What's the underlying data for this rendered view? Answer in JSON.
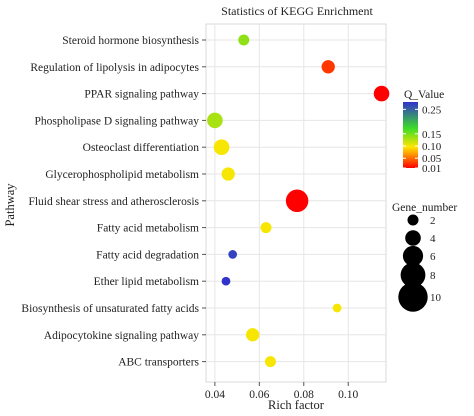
{
  "chart_data": {
    "type": "scatter",
    "title": "Statistics of KEGG Enrichment",
    "xlabel": "Rich factor",
    "ylabel": "Pathway",
    "xlim": [
      0.036,
      0.117
    ],
    "xticks": [
      0.04,
      0.06,
      0.08,
      0.1
    ],
    "xtick_labels": [
      "0.04",
      "0.06",
      "0.08",
      "0.10"
    ],
    "grid": true,
    "legend_position": "right",
    "points": [
      {
        "pathway": "Steroid hormone biosynthesis",
        "rich_factor": 0.053,
        "q_value": 0.14,
        "gene_number": 2
      },
      {
        "pathway": "Regulation of lipolysis in adipocytes",
        "rich_factor": 0.091,
        "q_value": 0.03,
        "gene_number": 3
      },
      {
        "pathway": "PPAR signaling pathway",
        "rich_factor": 0.115,
        "q_value": 0.01,
        "gene_number": 4
      },
      {
        "pathway": "Phospholipase D signaling pathway",
        "rich_factor": 0.04,
        "q_value": 0.13,
        "gene_number": 4
      },
      {
        "pathway": "Osteoclast differentiation",
        "rich_factor": 0.043,
        "q_value": 0.1,
        "gene_number": 4
      },
      {
        "pathway": "Glycerophospholipid metabolism",
        "rich_factor": 0.046,
        "q_value": 0.1,
        "gene_number": 3
      },
      {
        "pathway": "Fluid shear stress and atherosclerosis",
        "rich_factor": 0.077,
        "q_value": 0.01,
        "gene_number": 7
      },
      {
        "pathway": "Fatty acid metabolism",
        "rich_factor": 0.063,
        "q_value": 0.1,
        "gene_number": 2
      },
      {
        "pathway": "Fatty acid degradation",
        "rich_factor": 0.048,
        "q_value": 0.27,
        "gene_number": 1
      },
      {
        "pathway": "Ether lipid metabolism",
        "rich_factor": 0.045,
        "q_value": 0.28,
        "gene_number": 1
      },
      {
        "pathway": "Biosynthesis of unsaturated fatty acids",
        "rich_factor": 0.095,
        "q_value": 0.1,
        "gene_number": 1
      },
      {
        "pathway": "Adipocytokine signaling pathway",
        "rich_factor": 0.057,
        "q_value": 0.1,
        "gene_number": 3
      },
      {
        "pathway": "ABC transporters",
        "rich_factor": 0.065,
        "q_value": 0.1,
        "gene_number": 2
      }
    ],
    "color_legend": {
      "title": "Q_Value",
      "range": [
        0.01,
        0.28
      ],
      "ticks": [
        0.25,
        0.15,
        0.1,
        0.05,
        0.01
      ],
      "tick_labels": [
        "0.25",
        "0.15",
        "0.10",
        "0.05",
        "0.01"
      ],
      "colors_low_to_high": [
        "#ff0000",
        "#ff6600",
        "#ffee00",
        "#33dd22",
        "#3333cc"
      ]
    },
    "size_legend": {
      "title": "Gene_number",
      "values": [
        2,
        4,
        6,
        8,
        10
      ],
      "labels": [
        "2",
        "4",
        "6",
        "8",
        "10"
      ]
    }
  }
}
